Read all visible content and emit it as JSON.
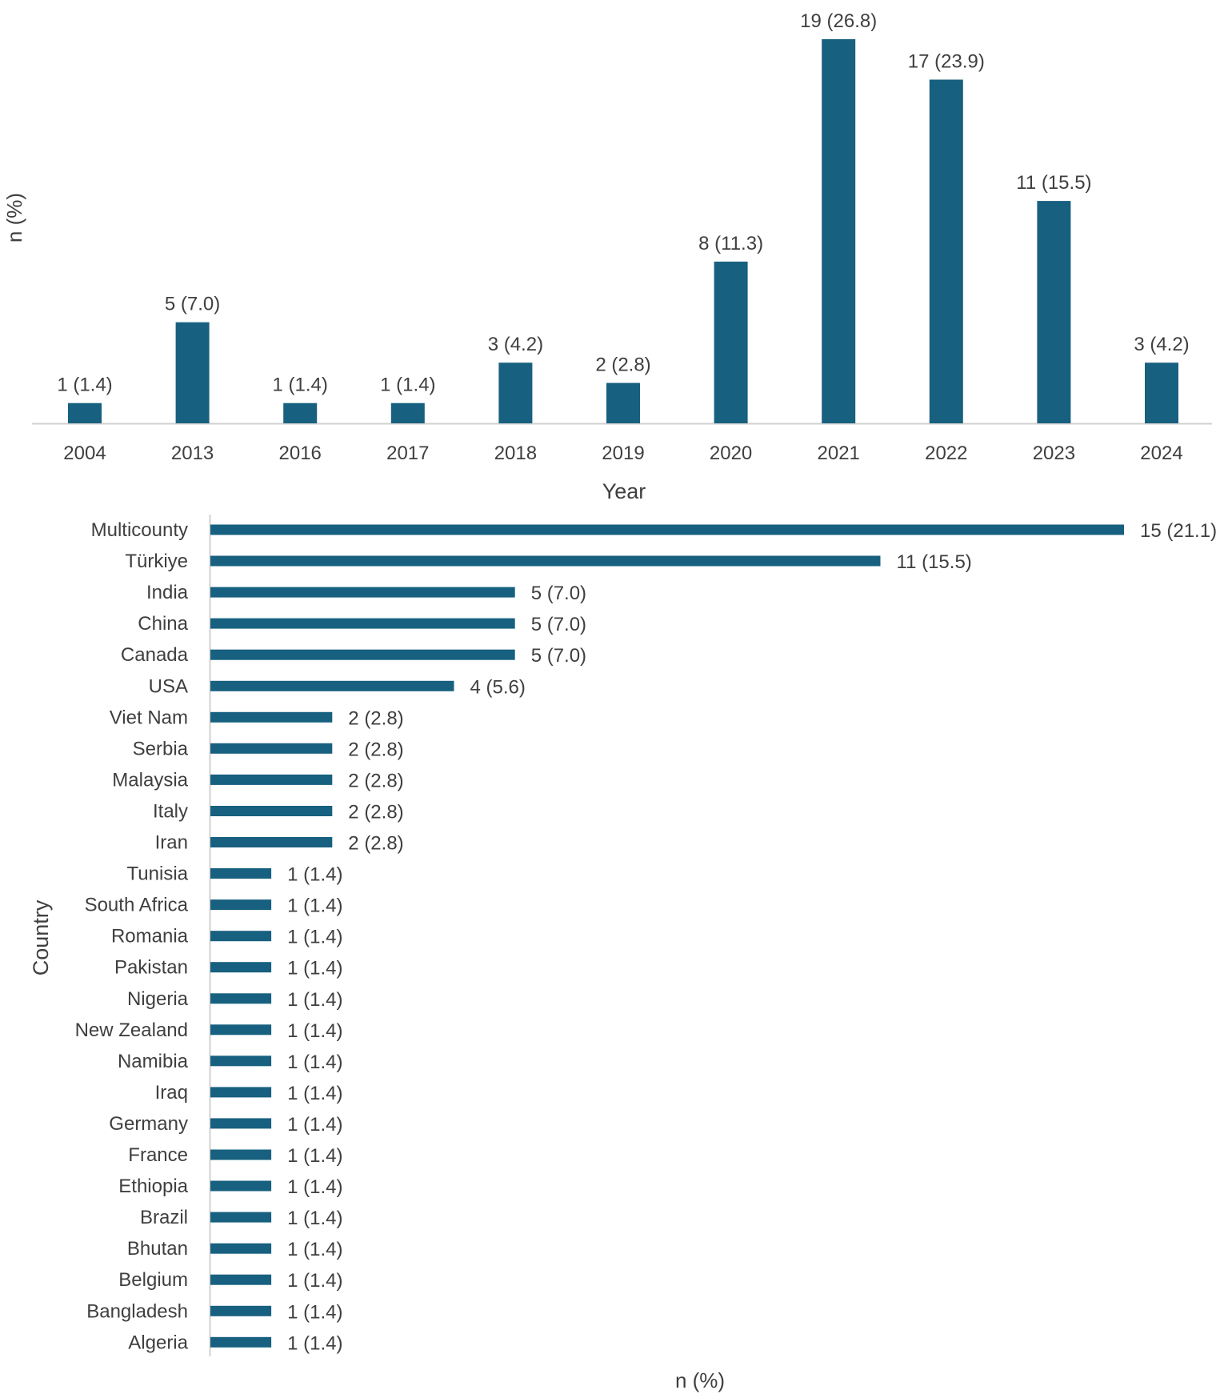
{
  "chart_data": [
    {
      "type": "bar",
      "orientation": "vertical",
      "title": "",
      "xlabel": "Year",
      "ylabel": "n (%)",
      "categories": [
        "2004",
        "2013",
        "2016",
        "2017",
        "2018",
        "2019",
        "2020",
        "2021",
        "2022",
        "2023",
        "2024"
      ],
      "values": [
        1,
        5,
        1,
        1,
        3,
        2,
        8,
        19,
        17,
        11,
        3
      ],
      "data_labels": [
        "1 (1.4)",
        "5 (7.0)",
        "1 (1.4)",
        "1 (1.4)",
        "3 (4.2)",
        "2 (2.8)",
        "8 (11.3)",
        "19 (26.8)",
        "17 (23.9)",
        "11 (15.5)",
        "3 (4.2)"
      ],
      "ylim": [
        0,
        19
      ],
      "grid": false,
      "bar_color": "#17607f"
    },
    {
      "type": "bar",
      "orientation": "horizontal",
      "title": "",
      "xlabel": "n (%)",
      "ylabel": "Country",
      "categories": [
        "Multicounty",
        "Türkiye",
        "India",
        "China",
        "Canada",
        "USA",
        "Viet Nam",
        "Serbia",
        "Malaysia",
        "Italy",
        "Iran",
        "Tunisia",
        "South Africa",
        "Romania",
        "Pakistan",
        "Nigeria",
        "New Zealand",
        "Namibia",
        "Iraq",
        "Germany",
        "France",
        "Ethiopia",
        "Brazil",
        "Bhutan",
        "Belgium",
        "Bangladesh",
        "Algeria"
      ],
      "values": [
        15,
        11,
        5,
        5,
        5,
        4,
        2,
        2,
        2,
        2,
        2,
        1,
        1,
        1,
        1,
        1,
        1,
        1,
        1,
        1,
        1,
        1,
        1,
        1,
        1,
        1,
        1
      ],
      "data_labels": [
        "15 (21.1)",
        "11 (15.5)",
        "5 (7.0)",
        "5 (7.0)",
        "5 (7.0)",
        "4 (5.6)",
        "2 (2.8)",
        "2 (2.8)",
        "2 (2.8)",
        "2 (2.8)",
        "2 (2.8)",
        "1  (1.4)",
        "1 (1.4)",
        "1 (1.4)",
        "1 (1.4)",
        "1 (1.4)",
        "1 (1.4)",
        "1 (1.4)",
        "1 (1.4)",
        "1 (1.4)",
        "1 (1.4)",
        "1 (1.4)",
        "1 (1.4)",
        "1 (1.4)",
        "1 (1.4)",
        "1 (1.4)",
        "1 (1.4)"
      ],
      "xlim": [
        0,
        15
      ],
      "grid": false,
      "bar_color": "#17607f"
    }
  ]
}
